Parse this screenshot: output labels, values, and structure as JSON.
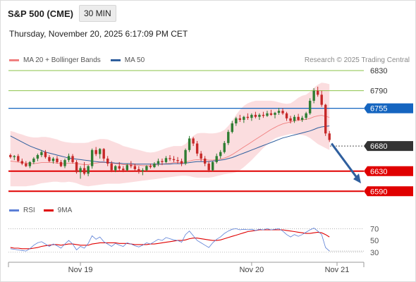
{
  "header": {
    "title": "S&P 500 (CME)",
    "timeframe": "30 MIN"
  },
  "datetime": "Thursday, November 20, 2025 6:17:09 PM CET",
  "copyright": "Research © 2025 Trading Central",
  "colors": {
    "up": "#2e7d32",
    "down": "#c62828",
    "ma20": "#f08080",
    "ma50": "#2f5f9e",
    "bollinger_fill": "#fbd9dc",
    "resistance": "#8bc34a",
    "pivot": "#1565c0",
    "support": "#e00000",
    "current": "#333333",
    "rsi": "#5b7fd6",
    "rsi_ma": "#e00000",
    "arrow": "#2f5f9e"
  },
  "chart_data": [
    {
      "type": "candlestick",
      "title": "",
      "x_ticks": [
        "Nov 19",
        "Nov 20",
        "Nov 21"
      ],
      "ylim": [
        6575,
        6840
      ],
      "y_tick_labels": [
        "6830",
        "6790",
        "6755",
        "6680",
        "6630",
        "6590"
      ],
      "legend": [
        {
          "name": "MA 20 + Bollinger Bands",
          "color": "#f08080"
        },
        {
          "name": "MA 50",
          "color": "#2f5f9e"
        }
      ],
      "candles": [
        [
          6662,
          6665,
          6655,
          6658
        ],
        [
          6658,
          6662,
          6652,
          6660
        ],
        [
          6660,
          6664,
          6648,
          6650
        ],
        [
          6650,
          6655,
          6642,
          6645
        ],
        [
          6645,
          6650,
          6638,
          6640
        ],
        [
          6640,
          6650,
          6636,
          6648
        ],
        [
          6648,
          6658,
          6644,
          6655
        ],
        [
          6655,
          6665,
          6650,
          6662
        ],
        [
          6662,
          6672,
          6658,
          6668
        ],
        [
          6668,
          6672,
          6655,
          6658
        ],
        [
          6658,
          6662,
          6648,
          6650
        ],
        [
          6650,
          6658,
          6645,
          6655
        ],
        [
          6655,
          6660,
          6645,
          6648
        ],
        [
          6648,
          6652,
          6638,
          6640
        ],
        [
          6640,
          6655,
          6636,
          6652
        ],
        [
          6652,
          6665,
          6648,
          6660
        ],
        [
          6660,
          6664,
          6645,
          6648
        ],
        [
          6648,
          6652,
          6625,
          6628
        ],
        [
          6628,
          6640,
          6615,
          6636
        ],
        [
          6636,
          6648,
          6622,
          6625
        ],
        [
          6625,
          6642,
          6620,
          6640
        ],
        [
          6640,
          6675,
          6635,
          6672
        ],
        [
          6672,
          6678,
          6660,
          6664
        ],
        [
          6664,
          6676,
          6655,
          6674
        ],
        [
          6674,
          6676,
          6650,
          6655
        ],
        [
          6655,
          6660,
          6640,
          6645
        ],
        [
          6645,
          6650,
          6628,
          6632
        ],
        [
          6632,
          6642,
          6628,
          6640
        ],
        [
          6640,
          6648,
          6630,
          6635
        ],
        [
          6635,
          6640,
          6628,
          6632
        ],
        [
          6632,
          6645,
          6630,
          6642
        ],
        [
          6642,
          6650,
          6636,
          6640
        ],
        [
          6640,
          6645,
          6630,
          6634
        ],
        [
          6634,
          6640,
          6625,
          6630
        ],
        [
          6630,
          6636,
          6622,
          6632
        ],
        [
          6632,
          6642,
          6630,
          6640
        ],
        [
          6640,
          6645,
          6635,
          6638
        ],
        [
          6638,
          6648,
          6636,
          6645
        ],
        [
          6645,
          6655,
          6640,
          6650
        ],
        [
          6650,
          6655,
          6642,
          6648
        ],
        [
          6648,
          6660,
          6646,
          6656
        ],
        [
          6656,
          6662,
          6650,
          6654
        ],
        [
          6654,
          6660,
          6648,
          6652
        ],
        [
          6652,
          6658,
          6645,
          6650
        ],
        [
          6650,
          6655,
          6640,
          6645
        ],
        [
          6645,
          6675,
          6642,
          6672
        ],
        [
          6672,
          6700,
          6668,
          6695
        ],
        [
          6695,
          6698,
          6680,
          6685
        ],
        [
          6685,
          6690,
          6660,
          6665
        ],
        [
          6665,
          6670,
          6650,
          6655
        ],
        [
          6655,
          6660,
          6640,
          6645
        ],
        [
          6645,
          6650,
          6628,
          6632
        ],
        [
          6632,
          6650,
          6630,
          6648
        ],
        [
          6648,
          6665,
          6645,
          6660
        ],
        [
          6660,
          6672,
          6655,
          6668
        ],
        [
          6668,
          6690,
          6665,
          6686
        ],
        [
          6686,
          6712,
          6682,
          6708
        ],
        [
          6708,
          6730,
          6705,
          6725
        ],
        [
          6725,
          6738,
          6720,
          6735
        ],
        [
          6735,
          6742,
          6728,
          6732
        ],
        [
          6732,
          6740,
          6726,
          6738
        ],
        [
          6738,
          6745,
          6732,
          6736
        ],
        [
          6736,
          6745,
          6730,
          6742
        ],
        [
          6742,
          6748,
          6735,
          6738
        ],
        [
          6738,
          6745,
          6732,
          6742
        ],
        [
          6742,
          6748,
          6736,
          6740
        ],
        [
          6740,
          6750,
          6738,
          6745
        ],
        [
          6745,
          6752,
          6740,
          6742
        ],
        [
          6742,
          6748,
          6735,
          6746
        ],
        [
          6746,
          6756,
          6742,
          6750
        ],
        [
          6750,
          6755,
          6742,
          6745
        ],
        [
          6745,
          6748,
          6730,
          6735
        ],
        [
          6735,
          6740,
          6725,
          6730
        ],
        [
          6730,
          6742,
          6726,
          6738
        ],
        [
          6738,
          6744,
          6730,
          6732
        ],
        [
          6732,
          6740,
          6728,
          6736
        ],
        [
          6736,
          6748,
          6732,
          6745
        ],
        [
          6745,
          6775,
          6742,
          6770
        ],
        [
          6770,
          6795,
          6765,
          6790
        ],
        [
          6790,
          6798,
          6778,
          6782
        ],
        [
          6782,
          6790,
          6758,
          6762
        ],
        [
          6762,
          6764,
          6700,
          6705
        ],
        [
          6705,
          6710,
          6688,
          6692
        ]
      ],
      "ma20": [
        6650,
        6649,
        6648,
        6647,
        6646,
        6645,
        6645,
        6646,
        6647,
        6647,
        6647,
        6647,
        6646,
        6645,
        6645,
        6646,
        6646,
        6645,
        6644,
        6643,
        6643,
        6645,
        6646,
        6647,
        6647,
        6647,
        6646,
        6645,
        6644,
        6643,
        6643,
        6643,
        6642,
        6642,
        6641,
        6641,
        6641,
        6642,
        6643,
        6644,
        6645,
        6646,
        6647,
        6647,
        6647,
        6648,
        6650,
        6652,
        6653,
        6653,
        6653,
        6652,
        6652,
        6653,
        6654,
        6656,
        6659,
        6663,
        6668,
        6673,
        6678,
        6683,
        6688,
        6693,
        6698,
        6703,
        6708,
        6713,
        6717,
        6721,
        6724,
        6726,
        6728,
        6730,
        6731,
        6732,
        6733,
        6735,
        6738,
        6740,
        6741,
        6739,
        6737
      ],
      "ma50": [
        6700,
        6696,
        6692,
        6688,
        6684,
        6680,
        6677,
        6674,
        6671,
        6668,
        6666,
        6664,
        6662,
        6660,
        6658,
        6656,
        6655,
        6654,
        6653,
        6652,
        6651,
        6650,
        6649,
        6648,
        6648,
        6647,
        6647,
        6646,
        6646,
        6645,
        6645,
        6645,
        6644,
        6644,
        6644,
        6644,
        6644,
        6644,
        6644,
        6644,
        6644,
        6644,
        6645,
        6645,
        6645,
        6646,
        6647,
        6648,
        6649,
        6649,
        6649,
        6649,
        6650,
        6651,
        6652,
        6653,
        6655,
        6657,
        6660,
        6663,
        6666,
        6669,
        6672,
        6675,
        6678,
        6681,
        6684,
        6687,
        6690,
        6693,
        6696,
        6698,
        6700,
        6702,
        6704,
        6706,
        6708,
        6710,
        6713,
        6716,
        6718,
        6719,
        6720
      ],
      "bb_upper": [
        6710,
        6708,
        6705,
        6703,
        6700,
        6698,
        6697,
        6697,
        6698,
        6698,
        6697,
        6695,
        6693,
        6690,
        6688,
        6687,
        6686,
        6686,
        6686,
        6686,
        6687,
        6690,
        6692,
        6694,
        6694,
        6693,
        6690,
        6687,
        6684,
        6680,
        6678,
        6676,
        6674,
        6672,
        6670,
        6668,
        6667,
        6668,
        6670,
        6673,
        6676,
        6678,
        6680,
        6680,
        6680,
        6684,
        6692,
        6700,
        6705,
        6706,
        6706,
        6705,
        6705,
        6706,
        6708,
        6712,
        6720,
        6730,
        6742,
        6752,
        6760,
        6765,
        6768,
        6770,
        6770,
        6770,
        6770,
        6770,
        6769,
        6767,
        6765,
        6764,
        6765,
        6770,
        6776,
        6780,
        6782,
        6788,
        6796,
        6802,
        6806,
        6805,
        6803
      ],
      "bb_lower": [
        6600,
        6600,
        6600,
        6600,
        6600,
        6601,
        6602,
        6604,
        6606,
        6607,
        6608,
        6609,
        6609,
        6608,
        6608,
        6609,
        6608,
        6606,
        6603,
        6601,
        6600,
        6601,
        6602,
        6603,
        6604,
        6605,
        6605,
        6605,
        6605,
        6606,
        6607,
        6608,
        6609,
        6610,
        6611,
        6612,
        6613,
        6614,
        6615,
        6616,
        6617,
        6618,
        6619,
        6620,
        6621,
        6621,
        6620,
        6618,
        6617,
        6617,
        6617,
        6617,
        6618,
        6620,
        6622,
        6624,
        6625,
        6626,
        6628,
        6632,
        6638,
        6645,
        6652,
        6660,
        6668,
        6676,
        6683,
        6690,
        6695,
        6698,
        6700,
        6702,
        6704,
        6704,
        6703,
        6702,
        6700,
        6696,
        6690,
        6684,
        6680,
        6676,
        6672
      ],
      "levels": [
        {
          "value": 6830,
          "label": "6830",
          "kind": "resistance"
        },
        {
          "value": 6790,
          "label": "6790",
          "kind": "resistance"
        },
        {
          "value": 6755,
          "label": "6755",
          "kind": "pivot"
        },
        {
          "value": 6680,
          "label": "6680",
          "kind": "current"
        },
        {
          "value": 6630,
          "label": "6630",
          "kind": "support"
        },
        {
          "value": 6590,
          "label": "6590",
          "kind": "support"
        }
      ],
      "forecast_arrow": {
        "from": 6685,
        "to": 6600
      }
    },
    {
      "type": "line",
      "title": "",
      "ylim": [
        25,
        80
      ],
      "y_tick_labels": [
        "70",
        "50",
        "30"
      ],
      "legend": [
        {
          "name": "RSI",
          "color": "#5b7fd6"
        },
        {
          "name": "9MA",
          "color": "#e00000"
        }
      ],
      "series": [
        {
          "name": "RSI",
          "values": [
            36,
            35,
            34,
            33,
            32,
            36,
            42,
            46,
            48,
            44,
            40,
            44,
            41,
            37,
            44,
            50,
            44,
            34,
            40,
            37,
            45,
            58,
            52,
            56,
            48,
            44,
            40,
            45,
            42,
            40,
            46,
            44,
            41,
            39,
            42,
            46,
            44,
            48,
            52,
            50,
            55,
            53,
            51,
            50,
            47,
            60,
            66,
            58,
            50,
            46,
            42,
            38,
            46,
            52,
            56,
            62,
            66,
            69,
            70,
            68,
            69,
            68,
            69,
            67,
            69,
            68,
            70,
            68,
            69,
            70,
            66,
            60,
            56,
            60,
            57,
            60,
            64,
            68,
            71,
            66,
            60,
            38,
            32
          ]
        },
        {
          "name": "9MA",
          "values": [
            38,
            37,
            37,
            36,
            36,
            36,
            37,
            38,
            40,
            41,
            42,
            43,
            43,
            42,
            43,
            44,
            44,
            43,
            42,
            42,
            42,
            44,
            45,
            46,
            46,
            46,
            46,
            46,
            45,
            45,
            45,
            44,
            43,
            43,
            43,
            43,
            44,
            44,
            45,
            46,
            47,
            48,
            49,
            50,
            50,
            51,
            53,
            54,
            54,
            53,
            52,
            51,
            50,
            50,
            51,
            53,
            55,
            57,
            59,
            61,
            63,
            65,
            66,
            67,
            68,
            68,
            68,
            68,
            68,
            68,
            68,
            67,
            66,
            65,
            64,
            63,
            62,
            62,
            63,
            64,
            63,
            60,
            56
          ]
        }
      ],
      "reference_lines": [
        70,
        30
      ]
    }
  ]
}
